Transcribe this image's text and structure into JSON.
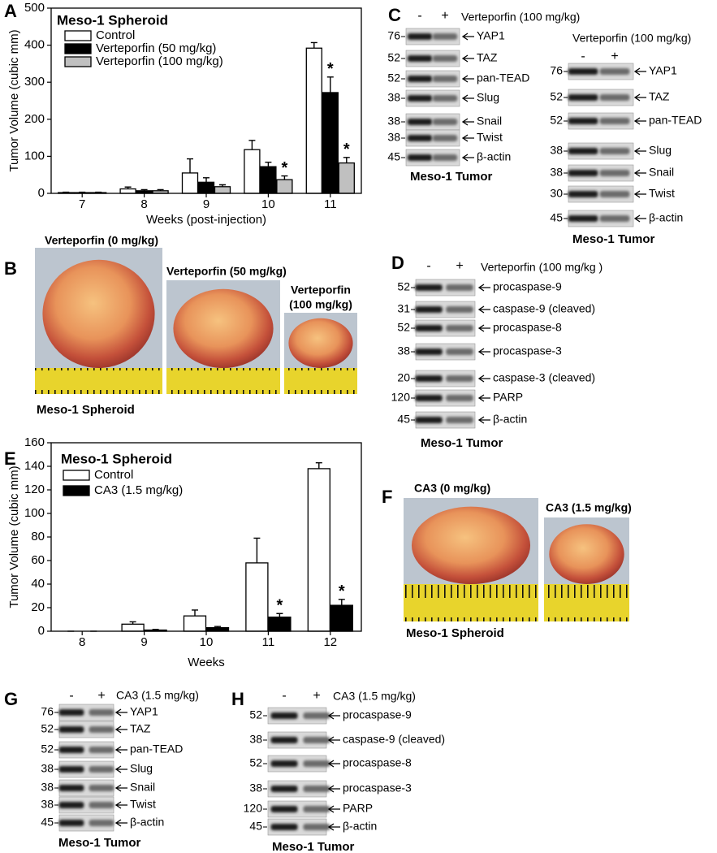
{
  "chart_data": [
    {
      "type": "bar",
      "panel_label": "A",
      "title": "Meso-1 Spheroid",
      "y_label": "Tumor Volume (cubic mm)",
      "x_label": "Weeks (post-injection)",
      "categories": [
        "7",
        "8",
        "9",
        "10",
        "11"
      ],
      "series": [
        {
          "name": "Control",
          "color": "#ffffff",
          "values": [
            2,
            12,
            55,
            118,
            392
          ],
          "errors": [
            1,
            5,
            38,
            25,
            15
          ]
        },
        {
          "name": "Verteporfin (50 mg/kg)",
          "color": "#000000",
          "values": [
            2,
            7,
            30,
            72,
            272
          ],
          "errors": [
            1,
            3,
            12,
            12,
            42
          ]
        },
        {
          "name": "Verteporfin (100 mg/kg)",
          "color": "#c0c0c0",
          "values": [
            2,
            7,
            18,
            37,
            82
          ],
          "errors": [
            1,
            3,
            5,
            10,
            15
          ]
        }
      ],
      "annotations": [
        {
          "text": "*",
          "category": "11",
          "series": "Verteporfin (50 mg/kg)"
        },
        {
          "text": "*",
          "category": "10",
          "series": "Verteporfin (100 mg/kg)"
        },
        {
          "text": "*",
          "category": "11",
          "series": "Verteporfin (100 mg/kg)"
        }
      ],
      "ylim": [
        0,
        500
      ],
      "yticks": [
        0,
        100,
        200,
        300,
        400,
        500
      ]
    },
    {
      "type": "bar",
      "panel_label": "E",
      "title": "Meso-1 Spheroid",
      "y_label": "Tumor Volume (cubic mm)",
      "x_label": "Weeks",
      "categories": [
        "8",
        "9",
        "10",
        "11",
        "12"
      ],
      "series": [
        {
          "name": "Control",
          "color": "#ffffff",
          "values": [
            0,
            6,
            13,
            58,
            138
          ],
          "errors": [
            0,
            2,
            5,
            21,
            5
          ]
        },
        {
          "name": "CA3 (1.5 mg/kg)",
          "color": "#000000",
          "values": [
            0,
            1,
            3,
            12,
            22
          ],
          "errors": [
            0,
            0.5,
            1,
            3,
            5
          ]
        }
      ],
      "annotations": [
        {
          "text": "*",
          "category": "11",
          "series": "CA3 (1.5 mg/kg)"
        },
        {
          "text": "*",
          "category": "12",
          "series": "CA3 (1.5 mg/kg)"
        }
      ],
      "ylim": [
        0,
        160
      ],
      "yticks": [
        0,
        20,
        40,
        60,
        80,
        100,
        120,
        140,
        160
      ]
    }
  ],
  "photos": [
    {
      "panel_label": "B",
      "items": [
        {
          "label_lines": [
            "Verteporfin (0 mg/kg)"
          ]
        },
        {
          "label_lines": [
            "Verteporfin (50 mg/kg)"
          ]
        },
        {
          "label_lines": [
            "Verteporfin",
            "(100 mg/kg)"
          ]
        }
      ],
      "caption": "Meso-1 Spheroid"
    },
    {
      "panel_label": "F",
      "items": [
        {
          "label_lines": [
            "CA3 (0 mg/kg)"
          ]
        },
        {
          "label_lines": [
            "CA3 (1.5 mg/kg)"
          ]
        }
      ],
      "caption": "Meso-1 Spheroid"
    }
  ],
  "blots": [
    {
      "panel_label": "C",
      "lanes": [
        "-",
        "+"
      ],
      "treatment": "Verteporfin (100 mg/kg)",
      "rows": [
        {
          "mw": 76,
          "label": "YAP1"
        },
        {
          "mw": 52,
          "label": "TAZ"
        },
        {
          "mw": 52,
          "label": "pan-TEAD"
        },
        {
          "mw": 38,
          "label": "Slug"
        },
        {
          "mw": 38,
          "label": "Snail"
        },
        {
          "mw": 38,
          "label": "Twist"
        },
        {
          "mw": 45,
          "label": "β-actin"
        }
      ],
      "caption": "Meso-1 Tumor"
    },
    {
      "lanes": [
        "-",
        "+"
      ],
      "treatment": "Verteporfin (100 mg/kg)",
      "rows": [
        {
          "mw": 76,
          "label": "YAP1"
        },
        {
          "mw": 52,
          "label": "TAZ"
        },
        {
          "mw": 52,
          "label": "pan-TEAD"
        },
        {
          "mw": 38,
          "label": "Slug"
        },
        {
          "mw": 38,
          "label": "Snail"
        },
        {
          "mw": 30,
          "label": "Twist"
        },
        {
          "mw": 45,
          "label": "β-actin"
        }
      ],
      "caption": "Meso-1 Tumor"
    },
    {
      "panel_label": "D",
      "lanes": [
        "-",
        "+"
      ],
      "treatment": "Verteporfin (100 mg/kg )",
      "rows": [
        {
          "mw": 52,
          "label": "procaspase-9"
        },
        {
          "mw": 31,
          "label": "caspase-9 (cleaved)"
        },
        {
          "mw": 52,
          "label": "procaspase-8"
        },
        {
          "mw": 38,
          "label": "procaspase-3"
        },
        {
          "mw": 20,
          "label": "caspase-3 (cleaved)"
        },
        {
          "mw": 120,
          "label": "PARP"
        },
        {
          "mw": 45,
          "label": "β-actin"
        }
      ],
      "caption": "Meso-1 Tumor"
    },
    {
      "panel_label": "G",
      "lanes": [
        "-",
        "+"
      ],
      "treatment": "CA3 (1.5 mg/kg)",
      "rows": [
        {
          "mw": 76,
          "label": "YAP1"
        },
        {
          "mw": 52,
          "label": "TAZ"
        },
        {
          "mw": 52,
          "label": "pan-TEAD"
        },
        {
          "mw": 38,
          "label": "Slug"
        },
        {
          "mw": 38,
          "label": "Snail"
        },
        {
          "mw": 38,
          "label": "Twist"
        },
        {
          "mw": 45,
          "label": "β-actin"
        }
      ],
      "caption": "Meso-1 Tumor"
    },
    {
      "panel_label": "H",
      "lanes": [
        "-",
        "+"
      ],
      "treatment": "CA3 (1.5 mg/kg)",
      "rows": [
        {
          "mw": 52,
          "label": "procaspase-9"
        },
        {
          "mw": 38,
          "label": "caspase-9 (cleaved)"
        },
        {
          "mw": 52,
          "label": "procaspase-8"
        },
        {
          "mw": 38,
          "label": "procaspase-3"
        },
        {
          "mw": 120,
          "label": "PARP"
        },
        {
          "mw": 45,
          "label": "β-actin"
        }
      ],
      "caption": "Meso-1 Tumor"
    }
  ]
}
